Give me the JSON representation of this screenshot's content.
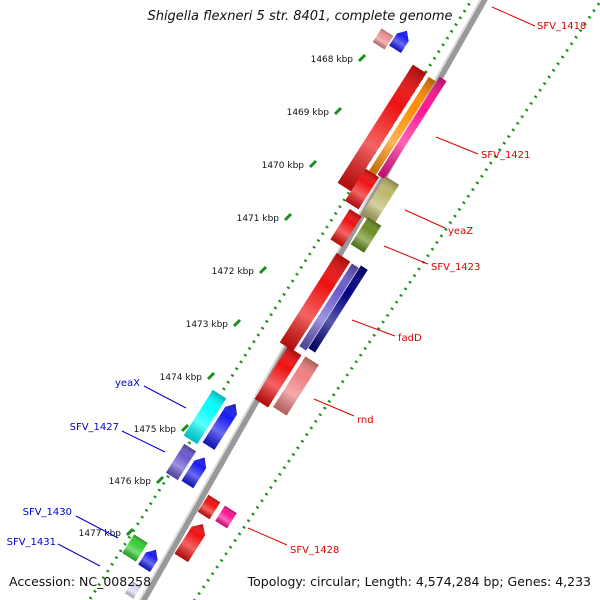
{
  "title": "Shigella flexneri 5 str. 8401, complete genome",
  "footer": {
    "accession": "Accession: NC_008258",
    "topology": "Topology: circular; Length: 4,574,284 bp; Genes: 4,233"
  },
  "colors": {
    "backbone": "#999999",
    "tick": "#1a8f1a",
    "label_forward": "#dd0000",
    "label_reverse": "#0000cc"
  },
  "ticks": [
    {
      "label": "1468 kbp"
    },
    {
      "label": "1469 kbp"
    },
    {
      "label": "1470 kbp"
    },
    {
      "label": "1471 kbp"
    },
    {
      "label": "1472 kbp"
    },
    {
      "label": "1473 kbp"
    },
    {
      "label": "1474 kbp"
    },
    {
      "label": "1475 kbp"
    },
    {
      "label": "1476 kbp"
    },
    {
      "label": "1477 kbp"
    }
  ],
  "gene_labels": [
    {
      "text": "SFV_1418",
      "strand": "forward"
    },
    {
      "text": "SFV_1421",
      "strand": "forward"
    },
    {
      "text": "yeaZ",
      "strand": "forward"
    },
    {
      "text": "SFV_1423",
      "strand": "forward"
    },
    {
      "text": "fadD",
      "strand": "forward"
    },
    {
      "text": "rnd",
      "strand": "forward"
    },
    {
      "text": "SFV_1428",
      "strand": "forward"
    },
    {
      "text": "yeaX",
      "strand": "reverse"
    },
    {
      "text": "SFV_1427",
      "strand": "reverse"
    },
    {
      "text": "SFV_1430",
      "strand": "reverse"
    },
    {
      "text": "SFV_1431",
      "strand": "reverse"
    }
  ],
  "features": [
    {
      "name": "feature-sfv1418-cds",
      "color": "#f09090",
      "strand": "forward"
    },
    {
      "name": "feature-sfv1418-gene",
      "color": "#1a1aee",
      "strand": "forward"
    },
    {
      "name": "feature-sfv1421-cds",
      "color": "#ee1111",
      "strand": "forward"
    },
    {
      "name": "feature-sfv1421-orange",
      "color": "#ff8c00",
      "strand": "forward"
    },
    {
      "name": "feature-sfv1421-pink",
      "color": "#ff1493",
      "strand": "forward"
    },
    {
      "name": "feature-yeaz-cds",
      "color": "#ee1111",
      "strand": "forward"
    },
    {
      "name": "feature-yeaz-domain",
      "color": "#bdb76b",
      "strand": "forward"
    },
    {
      "name": "feature-sfv1423-cds",
      "color": "#ee1111",
      "strand": "forward"
    },
    {
      "name": "feature-sfv1423-domain",
      "color": "#6b8e23",
      "strand": "forward"
    },
    {
      "name": "feature-fadd-cds",
      "color": "#ee1111",
      "strand": "forward"
    },
    {
      "name": "feature-fadd-blue",
      "color": "#6a5acd",
      "strand": "forward"
    },
    {
      "name": "feature-fadd-navy",
      "color": "#000080",
      "strand": "forward"
    },
    {
      "name": "feature-rnd-cds",
      "color": "#ee1111",
      "strand": "forward"
    },
    {
      "name": "feature-rnd-pink",
      "color": "#f08080",
      "strand": "forward"
    },
    {
      "name": "feature-yeax-cyan",
      "color": "#00ffff",
      "strand": "reverse"
    },
    {
      "name": "feature-yeax-blue",
      "color": "#1a1aee",
      "strand": "reverse"
    },
    {
      "name": "feature-sfv1427-slate",
      "color": "#6a5acd",
      "strand": "reverse"
    },
    {
      "name": "feature-sfv1427-blue",
      "color": "#1a1aee",
      "strand": "reverse"
    },
    {
      "name": "feature-sfv1428-red",
      "color": "#ee1111",
      "strand": "forward"
    },
    {
      "name": "feature-sfv1428-pink",
      "color": "#ff1493",
      "strand": "forward"
    },
    {
      "name": "feature-sfv1428-cds",
      "color": "#ee1111",
      "strand": "forward"
    },
    {
      "name": "feature-sfv1430-green",
      "color": "#32cd32",
      "strand": "reverse"
    },
    {
      "name": "feature-sfv1430-blue",
      "color": "#1a1aee",
      "strand": "reverse"
    },
    {
      "name": "feature-sfv1431-lavender",
      "color": "#d8d8f0",
      "strand": "reverse"
    }
  ]
}
